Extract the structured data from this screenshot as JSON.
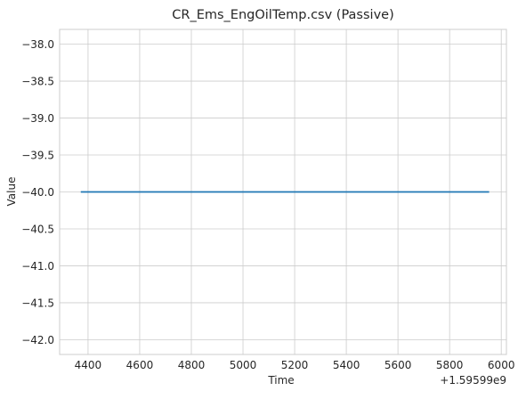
{
  "chart_data": {
    "type": "line",
    "title": "CR_Ems_EngOilTemp.csv (Passive)",
    "xlabel": "Time",
    "ylabel": "Value",
    "x_offset_text": "+1.59599e9",
    "xlim": [
      4290,
      6020
    ],
    "ylim": [
      -42.2,
      -37.8
    ],
    "x_ticks": [
      4400,
      4600,
      4800,
      5000,
      5200,
      5400,
      5600,
      5800,
      6000
    ],
    "x_tick_labels": [
      "4400",
      "4600",
      "4800",
      "5000",
      "5200",
      "5400",
      "5600",
      "5800",
      "6000"
    ],
    "y_ticks": [
      -38.0,
      -38.5,
      -39.0,
      -39.5,
      -40.0,
      -40.5,
      -41.0,
      -41.5,
      -42.0
    ],
    "y_tick_labels": [
      "−38.0",
      "−38.5",
      "−39.0",
      "−39.5",
      "−40.0",
      "−40.5",
      "−41.0",
      "−41.5",
      "−42.0"
    ],
    "grid": true,
    "series": [
      {
        "color": "#1f77b4",
        "x": [
          4375,
          5950
        ],
        "y": [
          -40.0,
          -40.0
        ]
      }
    ]
  }
}
